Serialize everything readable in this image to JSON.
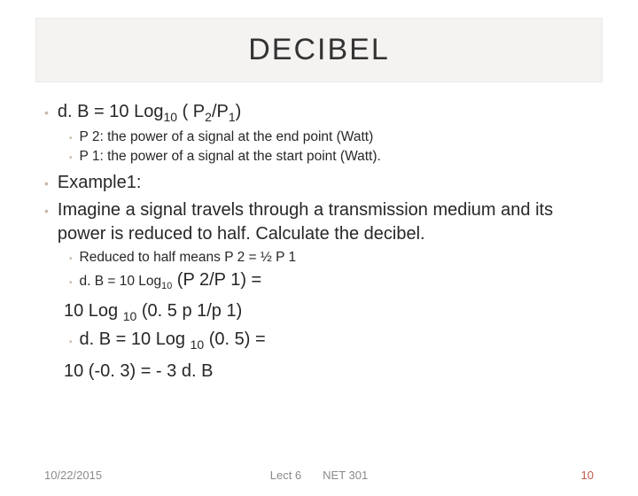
{
  "title": "DECIBEL",
  "bullets": {
    "formula": "d. B = 10 Log",
    "formula_sub": "10",
    "formula_tail": " ( P",
    "p2sub": "2",
    "slash": "/P",
    "p1sub": "1",
    "close": ")",
    "p2def": "P 2: the power of a signal at the end point (Watt)",
    "p1def": "P 1: the power of a signal at the start point (Watt).",
    "ex_label": "Example1:",
    "ex_text": "Imagine a signal travels through a transmission medium and its power is reduced to half. Calculate the decibel.",
    "reduced": "Reduced to half means P 2 = ½ P 1",
    "line_db1a": "d. B = 10 Log",
    "line_db1_sub": "10",
    "line_db1b": " (P 2/P 1) =",
    "line_calc1a": "10 Log ",
    "line_calc1_sub": "10",
    "line_calc1b": " (0. 5 p 1/p 1)",
    "line_db2a": "d. B = 10 Log ",
    "line_db2_sub": "10",
    "line_db2b": " (0. 5)  =",
    "line_result": "10 (-0. 3) = - 3 d. B"
  },
  "footer": {
    "date": "10/22/2015",
    "lect": "Lect 6",
    "course": "NET 301",
    "page": "10"
  },
  "colors": {
    "title_bg": "#f5f3f2",
    "bullet": "#c7b8ac",
    "text": "#272727",
    "footer": "#8a8a8a",
    "pagenum": "#c05a4a"
  }
}
